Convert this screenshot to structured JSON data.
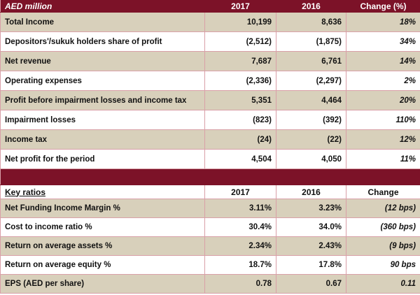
{
  "income": {
    "label_header": "AED million",
    "col_2017": "2017",
    "col_2016": "2016",
    "col_change": "Change (%)",
    "rows": [
      {
        "label": "Total Income",
        "v2017": "10,199",
        "v2016": "8,636",
        "change": "18%"
      },
      {
        "label": "Depositors'/sukuk holders share of profit",
        "v2017": "(2,512)",
        "v2016": "(1,875)",
        "change": "34%"
      },
      {
        "label": "Net revenue",
        "v2017": "7,687",
        "v2016": "6,761",
        "change": "14%"
      },
      {
        "label": "Operating expenses",
        "v2017": "(2,336)",
        "v2016": "(2,297)",
        "change": "2%"
      },
      {
        "label": "Profit before impairment losses and income tax",
        "v2017": "5,351",
        "v2016": "4,464",
        "change": "20%"
      },
      {
        "label": "Impairment losses",
        "v2017": "(823)",
        "v2016": "(392)",
        "change": "110%"
      },
      {
        "label": "Income tax",
        "v2017": "(24)",
        "v2016": "(22)",
        "change": "12%"
      },
      {
        "label": "Net profit for the period",
        "v2017": "4,504",
        "v2016": "4,050",
        "change": "11%"
      }
    ]
  },
  "ratios": {
    "label_header": "Key ratios",
    "col_2017": "2017",
    "col_2016": "2016",
    "col_change": "Change",
    "rows": [
      {
        "label": "Net Funding Income Margin %",
        "v2017": "3.11%",
        "v2016": "3.23%",
        "change": "(12 bps)"
      },
      {
        "label": "Cost to income ratio %",
        "v2017": "30.4%",
        "v2016": "34.0%",
        "change": "(360 bps)"
      },
      {
        "label": "Return on average assets %",
        "v2017": "2.34%",
        "v2016": "2.43%",
        "change": "(9 bps)"
      },
      {
        "label": "Return on average equity %",
        "v2017": "18.7%",
        "v2016": "17.8%",
        "change": "90 bps"
      },
      {
        "label": "EPS (AED per share)",
        "v2017": "0.78",
        "v2016": "0.67",
        "change": "0.11"
      }
    ]
  },
  "colors": {
    "header_bg": "#7c1228",
    "band_bg": "#d8d0bb",
    "grid": "#d9a0a8"
  }
}
